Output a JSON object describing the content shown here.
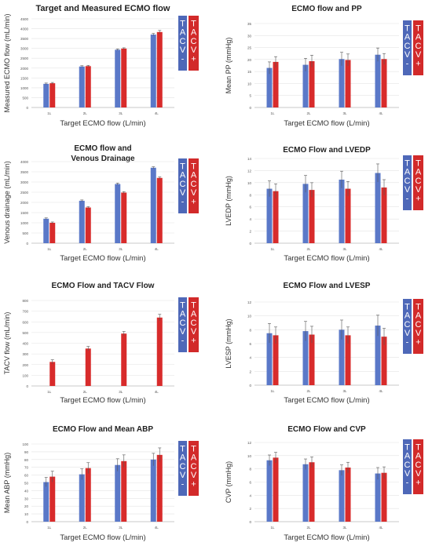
{
  "figure": {
    "colors": {
      "tacv_minus": "#5a78c8",
      "tacv_plus": "#d82b2b",
      "legend_minus_bg": "#4e68b8",
      "legend_plus_bg": "#d22a2a"
    },
    "legend_labels": {
      "minus": [
        "T",
        "A",
        "C",
        "V",
        "-"
      ],
      "plus": [
        "T",
        "A",
        "C",
        "V",
        "+"
      ]
    }
  },
  "chart_data": [
    {
      "type": "bar",
      "title": "Target and Measured ECMO flow",
      "xlabel": "Target ECMO flow (L/min)",
      "ylabel": "Measured ECMO flow (mL/min)",
      "categories": [
        "1L",
        "2L",
        "3L",
        "4L"
      ],
      "yticks": [
        "0",
        "500",
        "1000",
        "1500",
        "2000",
        "2500",
        "3000",
        "3500",
        "4000",
        "4500"
      ],
      "ylim": [
        0,
        4500
      ],
      "legend": "right",
      "series": [
        {
          "name": "TACV -",
          "values": [
            1200,
            2080,
            2930,
            3700
          ],
          "err": [
            40,
            40,
            40,
            60
          ]
        },
        {
          "name": "TACV +",
          "values": [
            1230,
            2100,
            2990,
            3830
          ],
          "err": [
            40,
            40,
            40,
            80
          ]
        }
      ]
    },
    {
      "type": "bar",
      "title": "ECMO flow and PP",
      "xlabel": "Target ECMO flow (L/min)",
      "ylabel": "Mean PP (mmHg)",
      "categories": [
        "1L",
        "2L",
        "3L",
        "4L"
      ],
      "yticks": [
        "0",
        "5",
        "10",
        "15",
        "20",
        "25",
        "30",
        "35"
      ],
      "ylim": [
        0,
        35
      ],
      "legend": "right",
      "series": [
        {
          "name": "TACV -",
          "values": [
            16.5,
            17.8,
            20.2,
            22.0
          ],
          "err": [
            2.5,
            2.7,
            2.8,
            2.8
          ]
        },
        {
          "name": "TACV +",
          "values": [
            19.0,
            19.3,
            19.8,
            20.2
          ],
          "err": [
            2.2,
            2.5,
            2.5,
            2.3
          ]
        }
      ]
    },
    {
      "type": "bar",
      "title": "ECMO flow and Venous Drainage",
      "title_lines": [
        "ECMO flow and",
        "Venous Drainage"
      ],
      "xlabel": "Target ECMO flow (L/min)",
      "ylabel": "Venous drainage (mL/min)",
      "categories": [
        "1L",
        "2L",
        "3L",
        "4L"
      ],
      "yticks": [
        "0",
        "500",
        "1000",
        "1500",
        "2000",
        "2500",
        "3000",
        "3500",
        "4000"
      ],
      "ylim": [
        0,
        4000
      ],
      "legend": "right",
      "series": [
        {
          "name": "TACV -",
          "values": [
            1200,
            2080,
            2900,
            3700
          ],
          "err": [
            40,
            40,
            50,
            50
          ]
        },
        {
          "name": "TACV +",
          "values": [
            1000,
            1750,
            2480,
            3200
          ],
          "err": [
            40,
            40,
            50,
            50
          ]
        }
      ]
    },
    {
      "type": "bar",
      "title": "ECMO Flow and LVEDP",
      "xlabel": "Target ECMO flow (L/min)",
      "ylabel": "LVEDP (mmHg)",
      "categories": [
        "1L",
        "2L",
        "3L",
        "4L"
      ],
      "yticks": [
        "0",
        "2",
        "4",
        "6",
        "8",
        "10",
        "12",
        "14"
      ],
      "ylim": [
        0,
        14
      ],
      "legend": "right",
      "series": [
        {
          "name": "TACV -",
          "values": [
            9.0,
            9.8,
            10.5,
            11.6
          ],
          "err": [
            1.3,
            1.4,
            1.4,
            1.5
          ]
        },
        {
          "name": "TACV +",
          "values": [
            8.6,
            8.8,
            9.0,
            9.2
          ],
          "err": [
            1.2,
            1.2,
            1.2,
            1.3
          ]
        }
      ]
    },
    {
      "type": "bar",
      "title": "ECMO Flow and TACV Flow",
      "xlabel": "Target ECMO flow (L/min)",
      "ylabel": "TACV flow (mL/min)",
      "categories": [
        "1L",
        "2L",
        "3L",
        "4L"
      ],
      "yticks": [
        "0",
        "100",
        "200",
        "300",
        "400",
        "500",
        "600",
        "700",
        "800"
      ],
      "ylim": [
        0,
        800
      ],
      "legend": "right",
      "series": [
        {
          "name": "TACV -",
          "values": [
            0,
            0,
            0,
            0
          ],
          "err": [
            0,
            0,
            0,
            0
          ]
        },
        {
          "name": "TACV +",
          "values": [
            225,
            350,
            490,
            640
          ],
          "err": [
            20,
            20,
            20,
            30
          ]
        }
      ]
    },
    {
      "type": "bar",
      "title": "ECMO Flow and LVESP",
      "xlabel": "Target ECMO flow (L/min)",
      "ylabel": "LVESP (mmHg)",
      "categories": [
        "1L",
        "2L",
        "3L",
        "4L"
      ],
      "yticks": [
        "0",
        "2",
        "4",
        "6",
        "8",
        "10",
        "12"
      ],
      "ylim": [
        0,
        12
      ],
      "legend": "right",
      "series": [
        {
          "name": "TACV -",
          "values": [
            7.5,
            7.8,
            8.0,
            8.6
          ],
          "err": [
            1.4,
            1.4,
            1.4,
            1.5
          ]
        },
        {
          "name": "TACV +",
          "values": [
            7.2,
            7.3,
            7.2,
            7.0
          ],
          "err": [
            1.2,
            1.2,
            1.2,
            1.2
          ]
        }
      ]
    },
    {
      "type": "bar",
      "title": "ECMO Flow and Mean ABP",
      "xlabel": "Target ECMO flow (L/min)",
      "ylabel": "Mean ABP (mmHg)",
      "categories": [
        "1L",
        "2L",
        "3L",
        "4L"
      ],
      "yticks": [
        "0",
        "10",
        "20",
        "30",
        "40",
        "50",
        "60",
        "70",
        "80",
        "90",
        "100"
      ],
      "ylim": [
        0,
        100
      ],
      "legend": "right",
      "series": [
        {
          "name": "TACV -",
          "values": [
            51,
            61,
            73,
            80
          ],
          "err": [
            6,
            7,
            8,
            8
          ]
        },
        {
          "name": "TACV +",
          "values": [
            58,
            69,
            78,
            86
          ],
          "err": [
            7,
            7,
            8,
            9
          ]
        }
      ]
    },
    {
      "type": "bar",
      "title": "ECMO Flow and CVP",
      "xlabel": "Target ECMO flow (L/min)",
      "ylabel": "CVP (mmHg)",
      "categories": [
        "1L",
        "2L",
        "3L",
        "4L"
      ],
      "yticks": [
        "0",
        "2",
        "4",
        "6",
        "8",
        "10",
        "12"
      ],
      "ylim": [
        0,
        12
      ],
      "legend": "right",
      "series": [
        {
          "name": "TACV -",
          "values": [
            9.3,
            8.7,
            7.8,
            7.3
          ],
          "err": [
            0.8,
            0.8,
            0.8,
            0.9
          ]
        },
        {
          "name": "TACV +",
          "values": [
            9.7,
            9.0,
            8.2,
            7.4
          ],
          "err": [
            0.8,
            0.8,
            0.8,
            0.9
          ]
        }
      ]
    }
  ]
}
